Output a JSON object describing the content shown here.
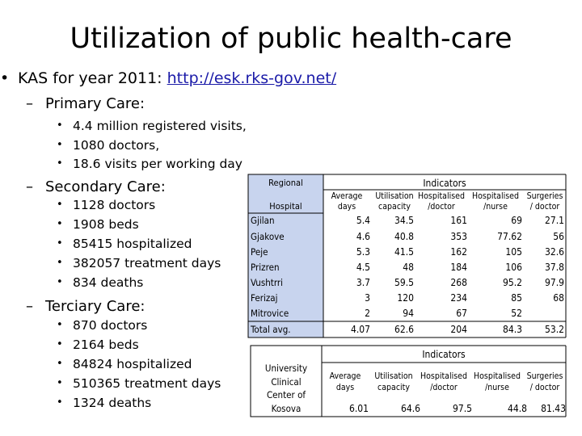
{
  "title": "Utilization of public health-care",
  "kas": {
    "prefix": "KAS for year 2011: ",
    "link": "http://esk.rks-gov.net/"
  },
  "primary": {
    "heading": "Primary Care:",
    "items": [
      "4.4 million registered visits,",
      "1080 doctors,",
      "18.6 visits per working day"
    ]
  },
  "secondary": {
    "heading": "Secondary Care:",
    "items": [
      "1128 doctors",
      "1908 beds",
      "85415 hospitalized",
      "382057 treatment days",
      "834 deaths"
    ]
  },
  "terciary": {
    "heading": "Terciary Care:",
    "items": [
      "870 doctors",
      "2164 beds",
      "84824 hospitalized",
      "510365 treatment days",
      "1324 deaths"
    ]
  },
  "regional_table": {
    "corner_top": "Regional",
    "corner_bottom": "Hospital",
    "indicators": "Indicators",
    "columns": [
      [
        "Average",
        "days"
      ],
      [
        "Utilisation",
        "capacity"
      ],
      [
        "Hospitalised",
        "/doctor"
      ],
      [
        "Hospitalised",
        "/nurse"
      ],
      [
        "Surgeries",
        "/ doctor"
      ]
    ],
    "rows": [
      {
        "name": "Gjilan",
        "values": [
          "5.4",
          "34.5",
          "161",
          "69",
          "27.1"
        ]
      },
      {
        "name": "Gjakove",
        "values": [
          "4.6",
          "40.8",
          "353",
          "77.62",
          "56"
        ]
      },
      {
        "name": "Peje",
        "values": [
          "5.3",
          "41.5",
          "162",
          "105",
          "32.6"
        ]
      },
      {
        "name": "Prizren",
        "values": [
          "4.5",
          "48",
          "184",
          "106",
          "37.8"
        ]
      },
      {
        "name": "Vushtrri",
        "values": [
          "3.7",
          "59.5",
          "268",
          "95.2",
          "97.9"
        ]
      },
      {
        "name": "Ferizaj",
        "values": [
          "3",
          "120",
          "234",
          "85",
          "68"
        ]
      },
      {
        "name": "Mitrovice",
        "values": [
          "2",
          "94",
          "67",
          "52",
          ""
        ]
      },
      {
        "name": "Total avg.",
        "values": [
          "4.07",
          "62.6",
          "204",
          "84.3",
          "53.2"
        ]
      }
    ]
  },
  "ucc_table": {
    "name_lines": [
      "University",
      "Clinical",
      "Center of",
      "Kosova"
    ],
    "indicators": "Indicators",
    "columns": [
      [
        "Average",
        "days"
      ],
      [
        "Utilisation",
        "capacity"
      ],
      [
        "Hospitalised",
        "/doctor"
      ],
      [
        "Hospitalised",
        "/nurse"
      ],
      [
        "Surgeries",
        "/ doctor"
      ]
    ],
    "values": [
      "6.01",
      "64.6",
      "97.5",
      "44.8",
      "81.43"
    ]
  }
}
